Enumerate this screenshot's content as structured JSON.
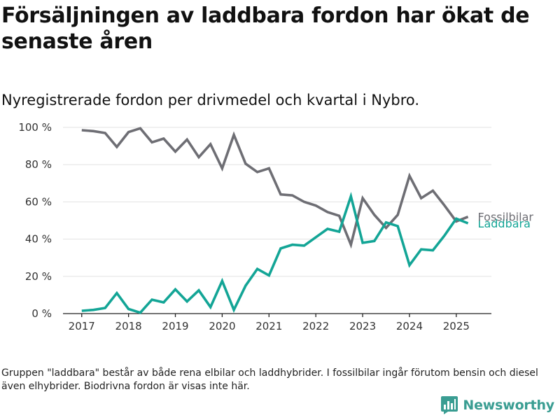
{
  "header": {
    "title": "Försäljningen av laddbara fordon har ökat de senaste åren",
    "subtitle": "Nyregistrerade fordon per drivmedel och kvartal i Nybro."
  },
  "footer": {
    "note": "Gruppen \"laddbara\" består av både rena elbilar och laddhybrider. I fossilbilar ingår förutom bensin och diesel även elhybrider. Biodrivna fordon är visas inte här.",
    "brand": "Newsworthy"
  },
  "colors": {
    "fossil": "#6e6e74",
    "laddbara": "#13a596",
    "grid": "#e2e2e2",
    "axis": "#222222",
    "brand": "#3a9d92"
  },
  "chart_data": {
    "type": "line",
    "title": "Försäljningen av laddbara fordon har ökat de senaste åren",
    "subtitle": "Nyregistrerade fordon per drivmedel och kvartal i Nybro.",
    "xlabel": "",
    "ylabel": "",
    "xlim": [
      2016.6,
      2025.75
    ],
    "ylim": [
      0,
      100
    ],
    "x_ticks": [
      2017,
      2018,
      2019,
      2020,
      2021,
      2022,
      2023,
      2024,
      2025
    ],
    "x_tick_labels": [
      "2017",
      "2018",
      "2019",
      "2020",
      "2021",
      "2022",
      "2023",
      "2024",
      "2025"
    ],
    "y_ticks": [
      0,
      20,
      40,
      60,
      80,
      100
    ],
    "y_tick_labels": [
      "0 %",
      "20 %",
      "40 %",
      "60 %",
      "80 %",
      "100 %"
    ],
    "grid": "horizontal",
    "legend": "direct labels at line ends",
    "x": [
      2017.0,
      2017.25,
      2017.5,
      2017.75,
      2018.0,
      2018.25,
      2018.5,
      2018.75,
      2019.0,
      2019.25,
      2019.5,
      2019.75,
      2020.0,
      2020.25,
      2020.5,
      2020.75,
      2021.0,
      2021.25,
      2021.5,
      2021.75,
      2022.0,
      2022.25,
      2022.5,
      2022.75,
      2023.0,
      2023.25,
      2023.5,
      2023.75,
      2024.0,
      2024.25,
      2024.5,
      2024.75,
      2025.0,
      2025.25
    ],
    "series": [
      {
        "name": "Fossilbilar",
        "color": "#6e6e74",
        "values": [
          98.5,
          98,
          97,
          89.5,
          97.5,
          99.5,
          92,
          94,
          87,
          93.5,
          84,
          91,
          78,
          96,
          80.5,
          76,
          78,
          64,
          63.5,
          60,
          58,
          54.5,
          52.5,
          37,
          62,
          53,
          46,
          53,
          74,
          62,
          66,
          58,
          49.5,
          52
        ]
      },
      {
        "name": "Laddbara",
        "color": "#13a596",
        "values": [
          1.5,
          2,
          3,
          11,
          2.5,
          0.5,
          7.5,
          6,
          13,
          6.5,
          12.5,
          3.5,
          17.5,
          2,
          15,
          24,
          20.5,
          35,
          37,
          36.5,
          41,
          45.5,
          44,
          63,
          38,
          39,
          49,
          47,
          26,
          34.5,
          34,
          42,
          51,
          48.5
        ]
      }
    ]
  }
}
